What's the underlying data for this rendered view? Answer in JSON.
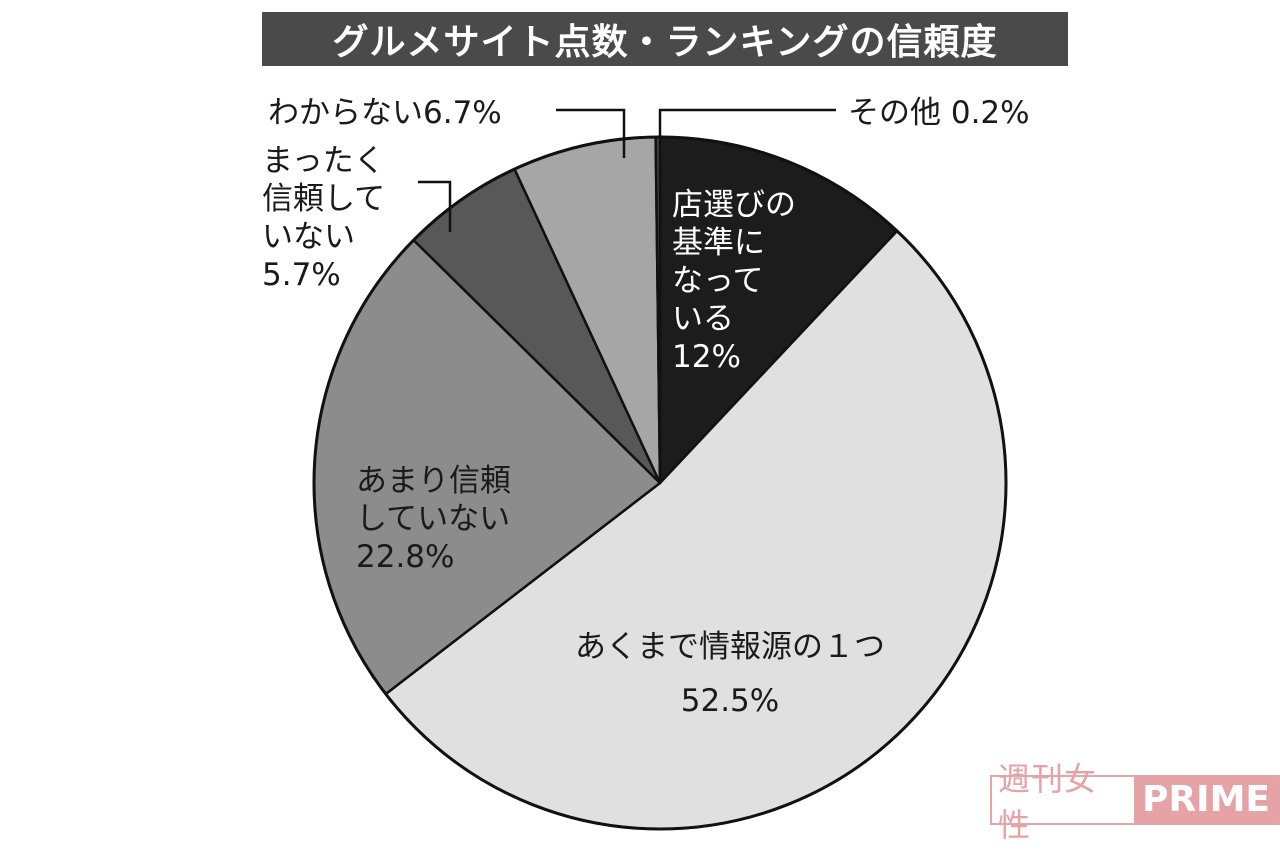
{
  "chart_data": {
    "type": "pie",
    "title": "グルメサイト点数・ランキングの信頼度",
    "slices": [
      {
        "label_lines": [
          "店選びの",
          "基準に",
          "なって",
          "いる",
          "12%"
        ],
        "value": 12.0,
        "color": "#1c1c1c"
      },
      {
        "label_lines": [
          "あくまで情報源の１つ",
          "52.5%"
        ],
        "value": 52.5,
        "color": "#e0e0e0"
      },
      {
        "label_lines": [
          "あまり信頼",
          "していない",
          "22.8%"
        ],
        "value": 22.8,
        "color": "#8c8c8c"
      },
      {
        "label_lines": [
          "まったく",
          "信頼して",
          "いない",
          "5.7%"
        ],
        "value": 5.7,
        "color": "#585858"
      },
      {
        "label_lines": [
          "わからない6.7%"
        ],
        "value": 6.7,
        "color": "#a6a6a6"
      },
      {
        "label_lines": [
          "その他 0.2%"
        ],
        "value": 0.2,
        "color": "#444444"
      }
    ]
  },
  "watermark": {
    "jp": "週刊女性",
    "en": "PRIME"
  }
}
